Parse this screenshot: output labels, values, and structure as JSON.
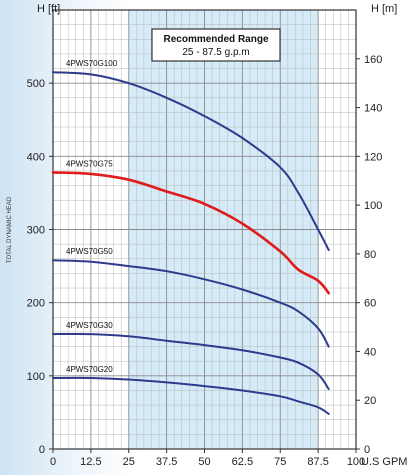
{
  "chart_data": {
    "type": "line",
    "left_axis_label": "H [ft]",
    "right_axis_label": "H [m]",
    "side_label": "TOTAL DYNAMIC HEAD",
    "x_unit_label": "U.S GPM",
    "x_ticks": [
      "0",
      "12.5",
      "25",
      "37.5",
      "50",
      "62.5",
      "75",
      "87.5",
      "100"
    ],
    "x_max": 100,
    "y_left_ticks": [
      "0",
      "100",
      "200",
      "300",
      "400",
      "500"
    ],
    "y_left_max": 600,
    "y_right_ticks": [
      "0",
      "20",
      "40",
      "60",
      "80",
      "100",
      "120",
      "140",
      "160"
    ],
    "y_right_max": 180,
    "grid": true,
    "recommended_range": {
      "title": "Recommended Range",
      "range_text": "25 - 87.5 g.p.m",
      "x_from": 25,
      "x_to": 87.5
    },
    "series": [
      {
        "name": "4PWS70G100",
        "color": "#2e3a8c",
        "x": [
          0,
          12.5,
          25,
          37.5,
          50,
          62.5,
          75,
          81,
          87.5,
          91
        ],
        "y": [
          515,
          512,
          500,
          480,
          455,
          425,
          385,
          350,
          300,
          272
        ]
      },
      {
        "name": "4PWS70G75",
        "color": "#e01b1b",
        "x": [
          0,
          12.5,
          25,
          37.5,
          50,
          62.5,
          75,
          81,
          87.5,
          91
        ],
        "y": [
          378,
          376,
          368,
          352,
          335,
          308,
          270,
          245,
          230,
          213
        ]
      },
      {
        "name": "4PWS70G50",
        "color": "#2e3a8c",
        "x": [
          0,
          12.5,
          25,
          37.5,
          50,
          62.5,
          75,
          81,
          87.5,
          91
        ],
        "y": [
          258,
          256,
          250,
          243,
          232,
          218,
          200,
          188,
          165,
          140
        ]
      },
      {
        "name": "4PWS70G30",
        "color": "#2e3a8c",
        "x": [
          0,
          12.5,
          25,
          37.5,
          50,
          62.5,
          75,
          81,
          87.5,
          91
        ],
        "y": [
          157,
          157,
          154,
          148,
          142,
          135,
          125,
          118,
          102,
          82
        ]
      },
      {
        "name": "4PWS70G20",
        "color": "#2e3a8c",
        "x": [
          0,
          12.5,
          25,
          37.5,
          50,
          62.5,
          75,
          81,
          87.5,
          91
        ],
        "y": [
          97,
          97,
          95,
          91,
          86,
          80,
          72,
          65,
          57,
          48
        ]
      }
    ]
  }
}
